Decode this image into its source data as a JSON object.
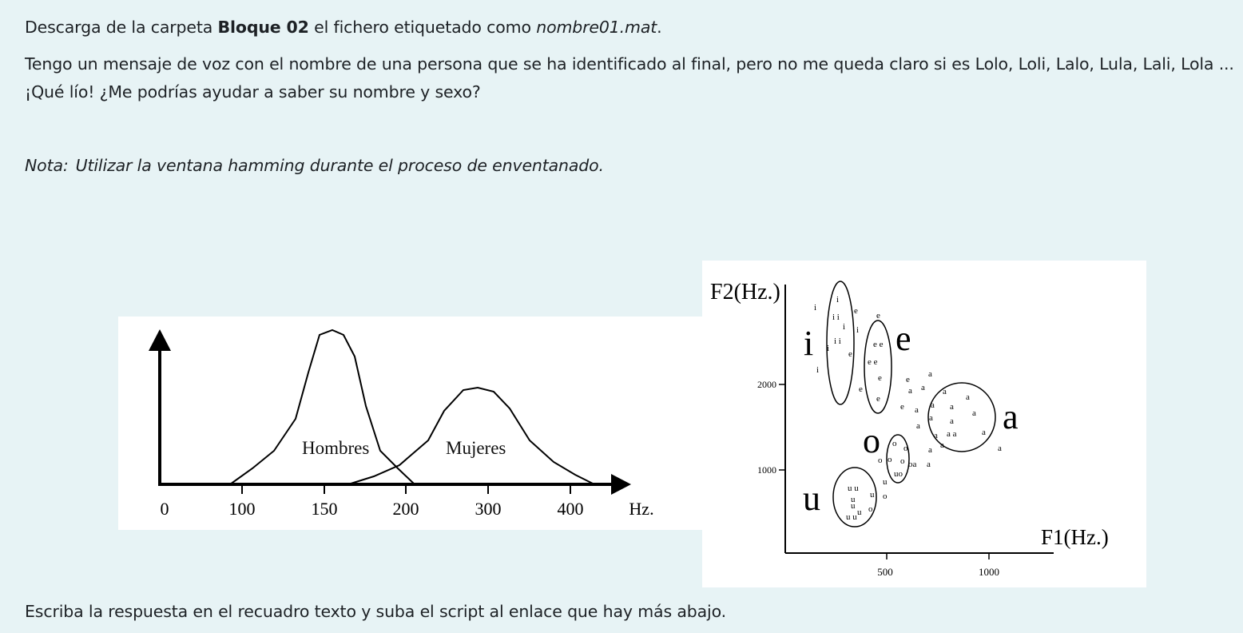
{
  "instructions": {
    "line1": {
      "prefix": "Descarga de la carpeta ",
      "folder": "Bloque 02",
      "middle": " el fichero etiquetado como ",
      "filename": "nombre01.mat",
      "suffix": "."
    },
    "line2": "Tengo un mensaje de voz con el nombre de una persona que se ha identificado al final, pero no me queda claro si es Lolo, Loli, Lalo, Lula, Lali, Lola ...",
    "line3": "¡Qué lío! ¿Me podrías ayudar a saber su nombre y sexo?",
    "note_label": "Nota:",
    "note_text": "Utilizar la ventana hamming durante el proceso de enventanado.",
    "footer": "Escriba la respuesta en el recuadro texto y suba el script al enlace que hay más abajo."
  },
  "pitch_figure": {
    "series": [
      {
        "name": "Hombres"
      },
      {
        "name": "Mujeres"
      }
    ],
    "x_ticks": [
      "0",
      "100",
      "150",
      "200",
      "300",
      "400"
    ],
    "x_unit": "Hz."
  },
  "formant_figure": {
    "y_label": "F2(Hz.)",
    "x_label": "F1(Hz.)",
    "y_ticks": [
      "2000",
      "1000"
    ],
    "x_ticks": [
      "500",
      "1000"
    ],
    "vowels": [
      "i",
      "e",
      "a",
      "o",
      "u"
    ]
  }
}
